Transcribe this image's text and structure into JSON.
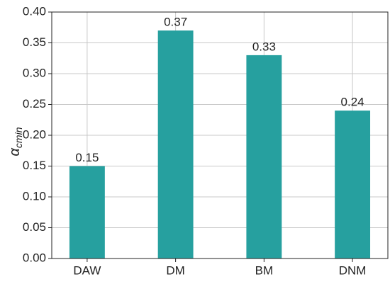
{
  "chart_data": {
    "type": "bar",
    "y_label": {
      "symbol": "α",
      "subscript": "cmin"
    },
    "categories": [
      "DAW",
      "DM",
      "BM",
      "DNM"
    ],
    "values": [
      0.15,
      0.37,
      0.33,
      0.24
    ],
    "color": "#26a09f",
    "ylim": [
      0,
      0.4
    ],
    "yticks": [
      {
        "value": 0,
        "label": "0.00"
      },
      {
        "value": 0.05,
        "label": "0.05"
      },
      {
        "value": 0.1,
        "label": "0.10"
      },
      {
        "value": 0.15,
        "label": "0.15"
      },
      {
        "value": 0.2,
        "label": "0.20"
      },
      {
        "value": 0.25,
        "label": "0.25"
      },
      {
        "value": 0.3,
        "label": "0.30"
      },
      {
        "value": 0.35,
        "label": "0.35"
      },
      {
        "value": 0.4,
        "label": "0.40"
      }
    ],
    "grid": true
  }
}
